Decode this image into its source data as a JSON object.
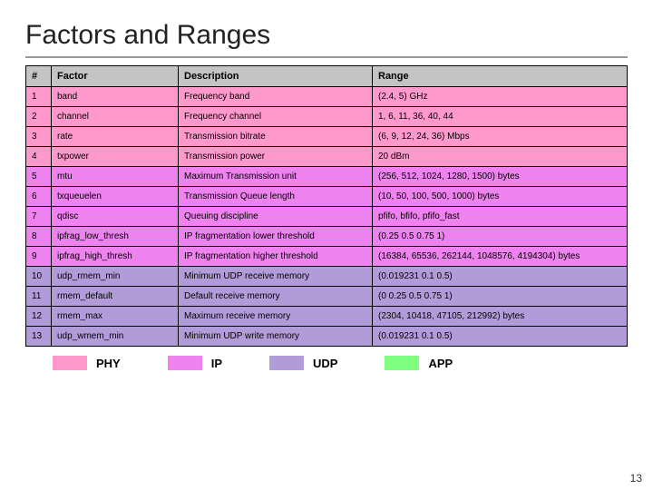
{
  "title": "Factors and Ranges",
  "columns": [
    "#",
    "Factor",
    "Description",
    "Range"
  ],
  "header_bg": "#c4c4c4",
  "row_colors": {
    "phy": "#ff99cc",
    "ip": "#ee82ee",
    "udp": "#b19cd9",
    "app": "#7fff7f"
  },
  "rows": [
    {
      "n": "1",
      "factor": "band",
      "desc": "Frequency band",
      "range": "(2.4, 5) GHz",
      "cat": "phy"
    },
    {
      "n": "2",
      "factor": "channel",
      "desc": "Frequency channel",
      "range": "1, 6, 11, 36, 40, 44",
      "cat": "phy"
    },
    {
      "n": "3",
      "factor": "rate",
      "desc": "Transmission bitrate",
      "range": "(6, 9, 12, 24, 36) Mbps",
      "cat": "phy"
    },
    {
      "n": "4",
      "factor": "txpower",
      "desc": "Transmission power",
      "range": "20 dBm",
      "cat": "phy"
    },
    {
      "n": "5",
      "factor": "mtu",
      "desc": "Maximum Transmission unit",
      "range": "(256, 512, 1024, 1280, 1500) bytes",
      "cat": "ip"
    },
    {
      "n": "6",
      "factor": "txqueuelen",
      "desc": "Transmission Queue length",
      "range": "(10, 50, 100, 500, 1000) bytes",
      "cat": "ip"
    },
    {
      "n": "7",
      "factor": "qdisc",
      "desc": "Queuing discipline",
      "range": "pfifo, bfifo, pfifo_fast",
      "cat": "ip"
    },
    {
      "n": "8",
      "factor": "ipfrag_low_thresh",
      "desc": "IP fragmentation lower threshold",
      "range": "(0.25 0.5 0.75 1)",
      "cat": "ip"
    },
    {
      "n": "9",
      "factor": "ipfrag_high_thresh",
      "desc": "IP fragmentation higher threshold",
      "range": "(16384, 65536, 262144, 1048576, 4194304) bytes",
      "cat": "ip"
    },
    {
      "n": "10",
      "factor": "udp_rmem_min",
      "desc": "Minimum UDP receive memory",
      "range": "(0.019231 0.1 0.5)",
      "cat": "udp"
    },
    {
      "n": "11",
      "factor": "rmem_default",
      "desc": "Default receive memory",
      "range": "(0 0.25 0.5 0.75 1)",
      "cat": "udp"
    },
    {
      "n": "12",
      "factor": "rmem_max",
      "desc": "Maximum receive memory",
      "range": "(2304, 10418, 47105, 212992) bytes",
      "cat": "udp"
    },
    {
      "n": "13",
      "factor": "udp_wmem_min",
      "desc": "Minimum UDP write memory",
      "range": "(0.019231 0.1 0.5)",
      "cat": "udp"
    }
  ],
  "legend": [
    {
      "label": "PHY",
      "cat": "phy"
    },
    {
      "label": "IP",
      "cat": "ip"
    },
    {
      "label": "UDP",
      "cat": "udp"
    },
    {
      "label": "APP",
      "cat": "app"
    }
  ],
  "page_number": "13"
}
